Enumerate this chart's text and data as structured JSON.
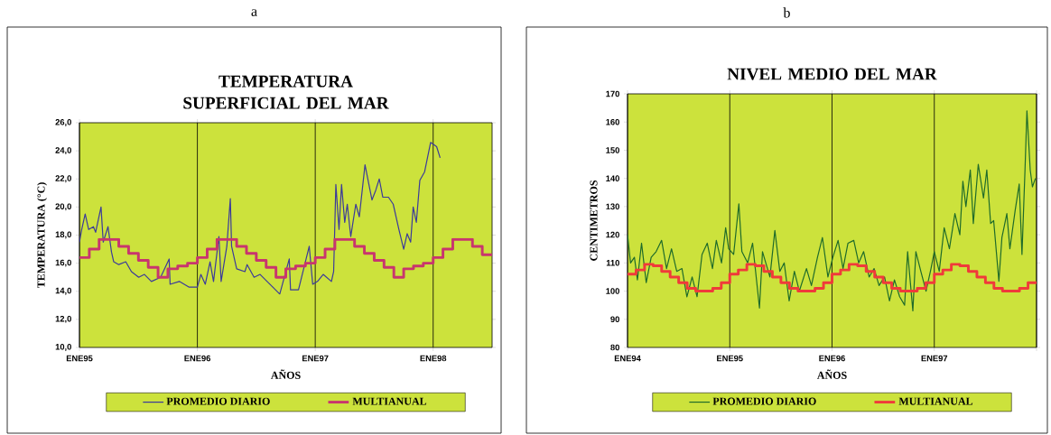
{
  "chart_data": [
    {
      "type": "line",
      "annotations": [
        "a"
      ],
      "title": "TEMPERATURA SUPERFICIAL DEL MAR",
      "xlabel": "AÑOS",
      "ylabel": "TEMPERATURA (°C)",
      "xlim": [
        "1995-01",
        "1998-07"
      ],
      "ylim": [
        10,
        26
      ],
      "xticks": [
        {
          "value": "1995-01",
          "label": "ENE95"
        },
        {
          "value": "1996-01",
          "label": "ENE96"
        },
        {
          "value": "1997-01",
          "label": "ENE97"
        },
        {
          "value": "1998-01",
          "label": "ENE98"
        }
      ],
      "yticks": [
        {
          "value": 10,
          "label": "10,0"
        },
        {
          "value": 12,
          "label": "12,0"
        },
        {
          "value": 14,
          "label": "14,0"
        },
        {
          "value": 16,
          "label": "16,0"
        },
        {
          "value": 18,
          "label": "18,0"
        },
        {
          "value": 20,
          "label": "20,0"
        },
        {
          "value": 22,
          "label": "22,0"
        },
        {
          "value": 24,
          "label": "24,0"
        },
        {
          "value": 26,
          "label": "26,0"
        }
      ],
      "grid": "x",
      "legend": "bottom",
      "series": [
        {
          "name": "PROMEDIO DIARIO",
          "type": "line",
          "color": "#3b3a9a",
          "x": [
            "1995-01-01",
            "1995-01-08",
            "1995-01-19",
            "1995-01-30",
            "1995-02-14",
            "1995-02-21",
            "1995-03-07",
            "1995-03-14",
            "1995-03-29",
            "1995-04-09",
            "1995-04-16",
            "1995-05-01",
            "1995-05-23",
            "1995-06-10",
            "1995-07-02",
            "1995-07-20",
            "1995-08-11",
            "1995-09-09",
            "1995-10-05",
            "1995-10-08",
            "1995-11-06",
            "1995-12-05",
            "1996-01-01",
            "1996-01-12",
            "1996-01-26",
            "1996-02-10",
            "1996-02-21",
            "1996-03-07",
            "1996-03-14",
            "1996-04-01",
            "1996-04-12",
            "1996-04-16",
            "1996-05-01",
            "1996-05-27",
            "1996-06-03",
            "1996-06-25",
            "1996-07-13",
            "1996-08-04",
            "1996-08-22",
            "1996-09-13",
            "1996-10-12",
            "1996-10-16",
            "1996-11-10",
            "1996-12-13",
            "1996-12-24",
            "1997-01-08",
            "1997-01-26",
            "1997-02-21",
            "1997-02-28",
            "1997-03-04",
            "1997-03-14",
            "1997-03-22",
            "1997-04-01",
            "1997-04-09",
            "1997-04-20",
            "1997-05-05",
            "1997-05-16",
            "1997-06-03",
            "1997-06-25",
            "1997-07-06",
            "1997-07-17",
            "1997-07-28",
            "1997-08-15",
            "1997-08-30",
            "1997-09-17",
            "1997-10-01",
            "1997-10-12",
            "1997-10-23",
            "1997-10-31",
            "1997-11-10",
            "1997-11-21",
            "1997-12-05",
            "1997-12-24",
            "1998-01-12",
            "1998-01-23"
          ],
          "values": [
            17.5,
            18.4,
            19.5,
            18.4,
            18.6,
            18.2,
            20.0,
            17.5,
            18.6,
            16.8,
            16.1,
            15.9,
            16.1,
            15.4,
            15.0,
            15.2,
            14.7,
            15.0,
            16.3,
            14.5,
            14.7,
            14.3,
            14.3,
            15.2,
            14.5,
            16.1,
            14.7,
            17.9,
            14.7,
            17.2,
            20.6,
            17.2,
            15.6,
            15.4,
            15.9,
            15.0,
            15.2,
            14.7,
            14.3,
            13.8,
            16.3,
            14.1,
            14.1,
            17.2,
            14.5,
            14.7,
            15.2,
            14.7,
            15.4,
            21.6,
            18.4,
            21.6,
            18.9,
            20.2,
            17.9,
            20.2,
            19.3,
            23.0,
            20.5,
            21.2,
            22.0,
            20.7,
            20.7,
            20.2,
            18.4,
            17.0,
            18.1,
            17.5,
            20.0,
            18.9,
            21.9,
            22.5,
            24.6,
            24.3,
            23.5
          ]
        },
        {
          "name": "MULTIANUAL",
          "type": "step",
          "color": "#c8356e",
          "x": [
            "1995-01",
            "1995-02",
            "1995-03",
            "1995-04",
            "1995-05",
            "1995-06",
            "1995-07",
            "1995-08",
            "1995-09",
            "1995-10",
            "1995-11",
            "1995-12",
            "1996-01",
            "1996-02",
            "1996-03",
            "1996-04",
            "1996-05",
            "1996-06",
            "1996-07",
            "1996-08",
            "1996-09",
            "1996-10",
            "1996-11",
            "1996-12",
            "1997-01",
            "1997-02",
            "1997-03",
            "1997-04",
            "1997-05",
            "1997-06",
            "1997-07",
            "1997-08",
            "1997-09",
            "1997-10",
            "1997-11",
            "1997-12",
            "1998-01",
            "1998-02",
            "1998-03",
            "1998-04",
            "1998-05",
            "1998-06",
            "1998-07"
          ],
          "values": [
            16.4,
            17.0,
            17.7,
            17.7,
            17.2,
            16.7,
            16.2,
            15.7,
            15.0,
            15.6,
            15.8,
            16.0,
            16.4,
            17.0,
            17.7,
            17.7,
            17.2,
            16.7,
            16.2,
            15.7,
            15.0,
            15.6,
            15.8,
            16.0,
            16.4,
            17.0,
            17.7,
            17.7,
            17.2,
            16.7,
            16.2,
            15.7,
            15.0,
            15.6,
            15.8,
            16.0,
            16.4,
            17.0,
            17.7,
            17.7,
            17.2,
            16.6,
            16.6
          ]
        }
      ]
    },
    {
      "type": "line",
      "annotations": [
        "b"
      ],
      "title": "NIVEL MEDIO DEL MAR",
      "xlabel": "AÑOS",
      "ylabel": "CENTIMETROS",
      "xlim": [
        "1994-01",
        "1998-01"
      ],
      "ylim": [
        80,
        170
      ],
      "xticks": [
        {
          "value": "1994-01",
          "label": "ENE94"
        },
        {
          "value": "1995-01",
          "label": "ENE95"
        },
        {
          "value": "1996-01",
          "label": "ENE96"
        },
        {
          "value": "1997-01",
          "label": "ENE97"
        },
        {
          "value": "1998-01",
          "label": null
        }
      ],
      "yticks": [
        80,
        90,
        100,
        110,
        120,
        130,
        140,
        150,
        160,
        170
      ],
      "grid": "x",
      "legend": "bottom",
      "series": [
        {
          "name": "PROMEDIO DIARIO",
          "type": "line",
          "color": "#1f6b2a",
          "x": [
            "1994-01-01",
            "1994-01-12",
            "1994-01-26",
            "1994-02-06",
            "1994-02-21",
            "1994-03-07",
            "1994-03-25",
            "1994-04-12",
            "1994-05-01",
            "1994-05-19",
            "1994-06-06",
            "1994-06-25",
            "1994-07-13",
            "1994-07-31",
            "1994-08-19",
            "1994-09-06",
            "1994-09-24",
            "1994-10-12",
            "1994-10-31",
            "1994-11-14",
            "1994-12-02",
            "1994-12-17",
            "1994-12-28",
            "1995-01-15",
            "1995-02-03",
            "1995-02-14",
            "1995-03-04",
            "1995-03-22",
            "1995-04-16",
            "1995-04-27",
            "1995-05-23",
            "1995-06-10",
            "1995-06-28",
            "1995-07-13",
            "1995-07-31",
            "1995-08-19",
            "1995-09-06",
            "1995-10-01",
            "1995-10-19",
            "1995-11-10",
            "1995-11-28",
            "1995-12-17",
            "1996-01-04",
            "1996-01-23",
            "1996-02-10",
            "1996-02-28",
            "1996-03-18",
            "1996-04-05",
            "1996-04-23",
            "1996-05-12",
            "1996-05-30",
            "1996-06-17",
            "1996-07-06",
            "1996-07-24",
            "1996-08-11",
            "1996-08-30",
            "1996-09-17",
            "1996-09-28",
            "1996-10-16",
            "1996-10-27",
            "1996-11-14",
            "1996-12-02",
            "1996-12-20",
            "1997-01-01",
            "1997-01-19",
            "1997-02-06",
            "1997-02-25",
            "1997-03-14",
            "1997-04-01",
            "1997-04-12",
            "1997-04-23",
            "1997-05-08",
            "1997-05-19",
            "1997-06-06",
            "1997-06-25",
            "1997-07-06",
            "1997-07-20",
            "1997-07-31",
            "1997-08-19",
            "1997-08-30",
            "1997-09-17",
            "1997-09-28",
            "1997-10-16",
            "1997-10-31",
            "1997-11-10",
            "1997-11-21",
            "1997-11-28",
            "1997-12-09",
            "1997-12-17",
            "1997-12-28"
          ],
          "values": [
            120,
            110,
            112,
            104,
            117,
            103,
            112,
            114,
            118,
            108,
            115,
            107,
            108,
            98,
            105,
            98,
            113,
            117,
            108,
            118,
            110,
            122.5,
            115,
            113,
            131,
            114,
            110,
            117,
            94,
            114,
            105,
            121.5,
            107,
            110,
            96.5,
            107,
            100,
            108,
            102,
            112,
            119,
            105,
            112,
            118,
            108,
            117,
            118,
            110,
            114,
            105,
            108,
            102,
            105,
            96.5,
            104,
            98,
            95,
            114,
            93,
            114,
            107,
            100,
            108,
            114,
            107,
            122.5,
            115,
            127.5,
            120,
            139,
            130,
            143,
            124,
            145,
            133,
            143,
            124,
            125,
            103.5,
            119,
            127.5,
            115,
            128.5,
            138,
            113,
            143,
            164,
            143,
            137,
            140
          ]
        },
        {
          "name": "MULTIANUAL",
          "type": "step",
          "color": "#f03a3a",
          "x": [
            "1994-01",
            "1994-02",
            "1994-03",
            "1994-04",
            "1994-05",
            "1994-06",
            "1994-07",
            "1994-08",
            "1994-09",
            "1994-10",
            "1994-11",
            "1994-12",
            "1995-01",
            "1995-02",
            "1995-03",
            "1995-04",
            "1995-05",
            "1995-06",
            "1995-07",
            "1995-08",
            "1995-09",
            "1995-10",
            "1995-11",
            "1995-12",
            "1996-01",
            "1996-02",
            "1996-03",
            "1996-04",
            "1996-05",
            "1996-06",
            "1996-07",
            "1996-08",
            "1996-09",
            "1996-10",
            "1996-11",
            "1996-12",
            "1997-01",
            "1997-02",
            "1997-03",
            "1997-04",
            "1997-05",
            "1997-06",
            "1997-07",
            "1997-08",
            "1997-09",
            "1997-10",
            "1997-11",
            "1997-12",
            "1998-01"
          ],
          "values": [
            106,
            107.5,
            109.5,
            109,
            107,
            105,
            103,
            101,
            100,
            100,
            101,
            103,
            106,
            107.5,
            109.5,
            109,
            107,
            105,
            103,
            101,
            100,
            100,
            101,
            103,
            106,
            107.5,
            109.5,
            109,
            107,
            105,
            103,
            101,
            100,
            100,
            101,
            103,
            106,
            107.5,
            109.5,
            109,
            107,
            105,
            103,
            101,
            100,
            100,
            101,
            103,
            103
          ]
        }
      ]
    }
  ]
}
